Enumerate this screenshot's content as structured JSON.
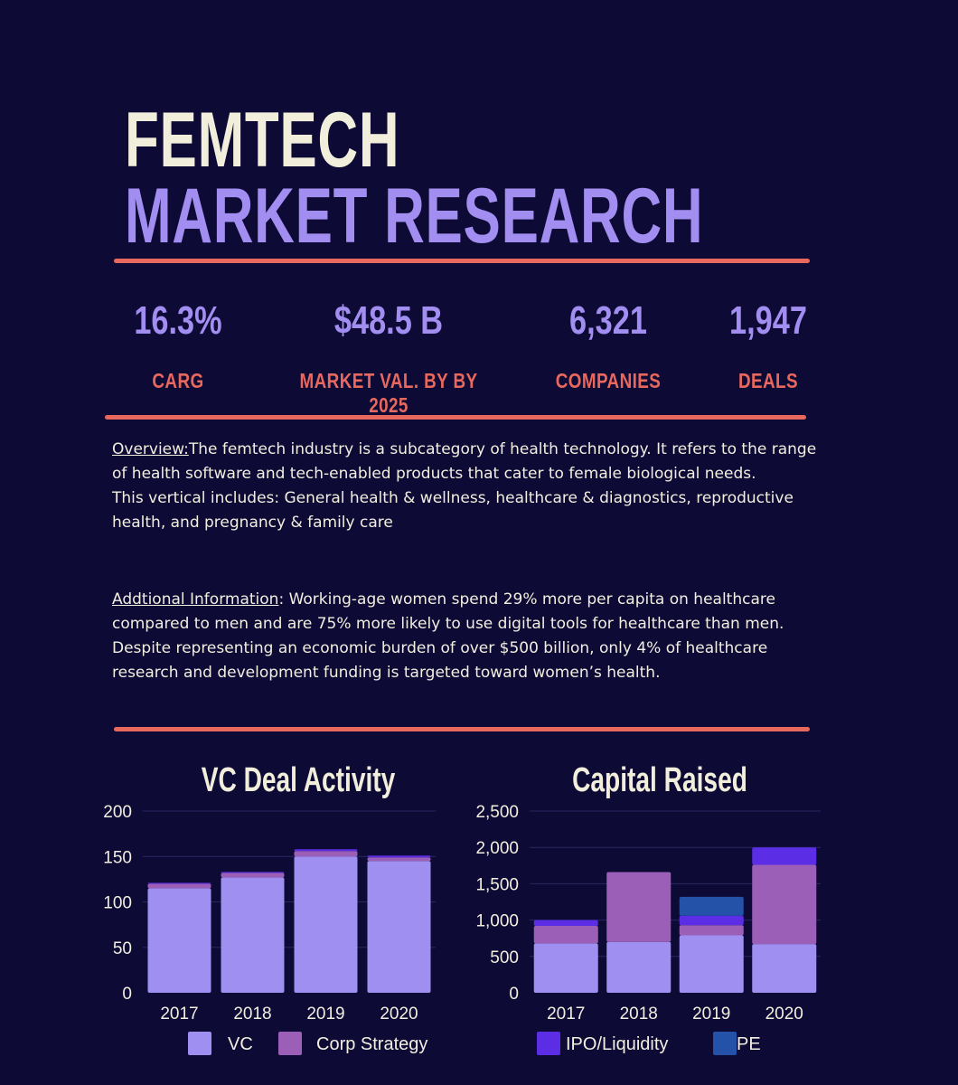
{
  "header": {
    "title_line1": "FEMTECH",
    "title_line2": "MARKET  RESEARCH"
  },
  "stats": [
    {
      "value": "16.3%",
      "label": "CARG"
    },
    {
      "value": "$48.5 B",
      "label": "MARKET VAL. BY BY 2025"
    },
    {
      "value": "6,321",
      "label": "COMPANIES"
    },
    {
      "value": "1,947",
      "label": "DEALS"
    }
  ],
  "overview": {
    "heading": "Overview:",
    "text": "The femtech industry is a subcategory of health technology. It refers to the range of health software and tech-enabled products that cater to female biological needs.",
    "text2": "This vertical includes: General health & wellness, healthcare & diagnostics, reproductive health, and pregnancy & family care"
  },
  "additional": {
    "heading": "Addtional Information",
    "text": ": Working-age women spend 29% more per capita on healthcare compared to men and are 75% more likely to use digital tools for healthcare than men. Despite representing an economic burden of over $500 billion,  only 4% of healthcare research and development funding is targeted toward women’s health."
  },
  "colors": {
    "background": "#0d0a35",
    "accent": "#e8685e",
    "lavender": "#a28df0",
    "VC": "#9f8ff0",
    "Corp Strategy": "#9b5fb8",
    "IPO/Liquidity": "#5b2ee6",
    "PE": "#2352a8"
  },
  "legend": [
    "VC",
    "Corp Strategy",
    "IPO/Liquidity",
    "PE"
  ],
  "chart_data": [
    {
      "type": "bar",
      "stacked": true,
      "title": "VC Deal Activity",
      "categories": [
        "2017",
        "2018",
        "2019",
        "2020"
      ],
      "series": [
        {
          "name": "VC",
          "values": [
            115,
            127,
            150,
            145
          ]
        },
        {
          "name": "Corp Strategy",
          "values": [
            5,
            5,
            6,
            4
          ]
        },
        {
          "name": "IPO/Liquidity",
          "values": [
            1,
            1,
            2,
            2
          ]
        }
      ],
      "ylim": [
        0,
        200
      ],
      "yticks": [
        "0",
        "50",
        "100",
        "150",
        "200"
      ],
      "ytick_values": [
        0,
        50,
        100,
        150,
        200
      ],
      "grid": true
    },
    {
      "type": "bar",
      "stacked": true,
      "title": "Capital Raised",
      "categories": [
        "2017",
        "2018",
        "2019",
        "2020"
      ],
      "series": [
        {
          "name": "VC",
          "values": [
            680,
            700,
            790,
            670
          ]
        },
        {
          "name": "Corp Strategy",
          "values": [
            240,
            960,
            140,
            1090
          ]
        },
        {
          "name": "IPO/Liquidity",
          "values": [
            80,
            0,
            130,
            240
          ]
        },
        {
          "name": "PE",
          "values": [
            0,
            0,
            260,
            0
          ]
        }
      ],
      "ylim": [
        0,
        2500
      ],
      "yticks": [
        "0",
        "500",
        "1,000",
        "1,500",
        "2,000",
        "2,500"
      ],
      "ytick_values": [
        0,
        500,
        1000,
        1500,
        2000,
        2500
      ],
      "grid": true
    }
  ]
}
